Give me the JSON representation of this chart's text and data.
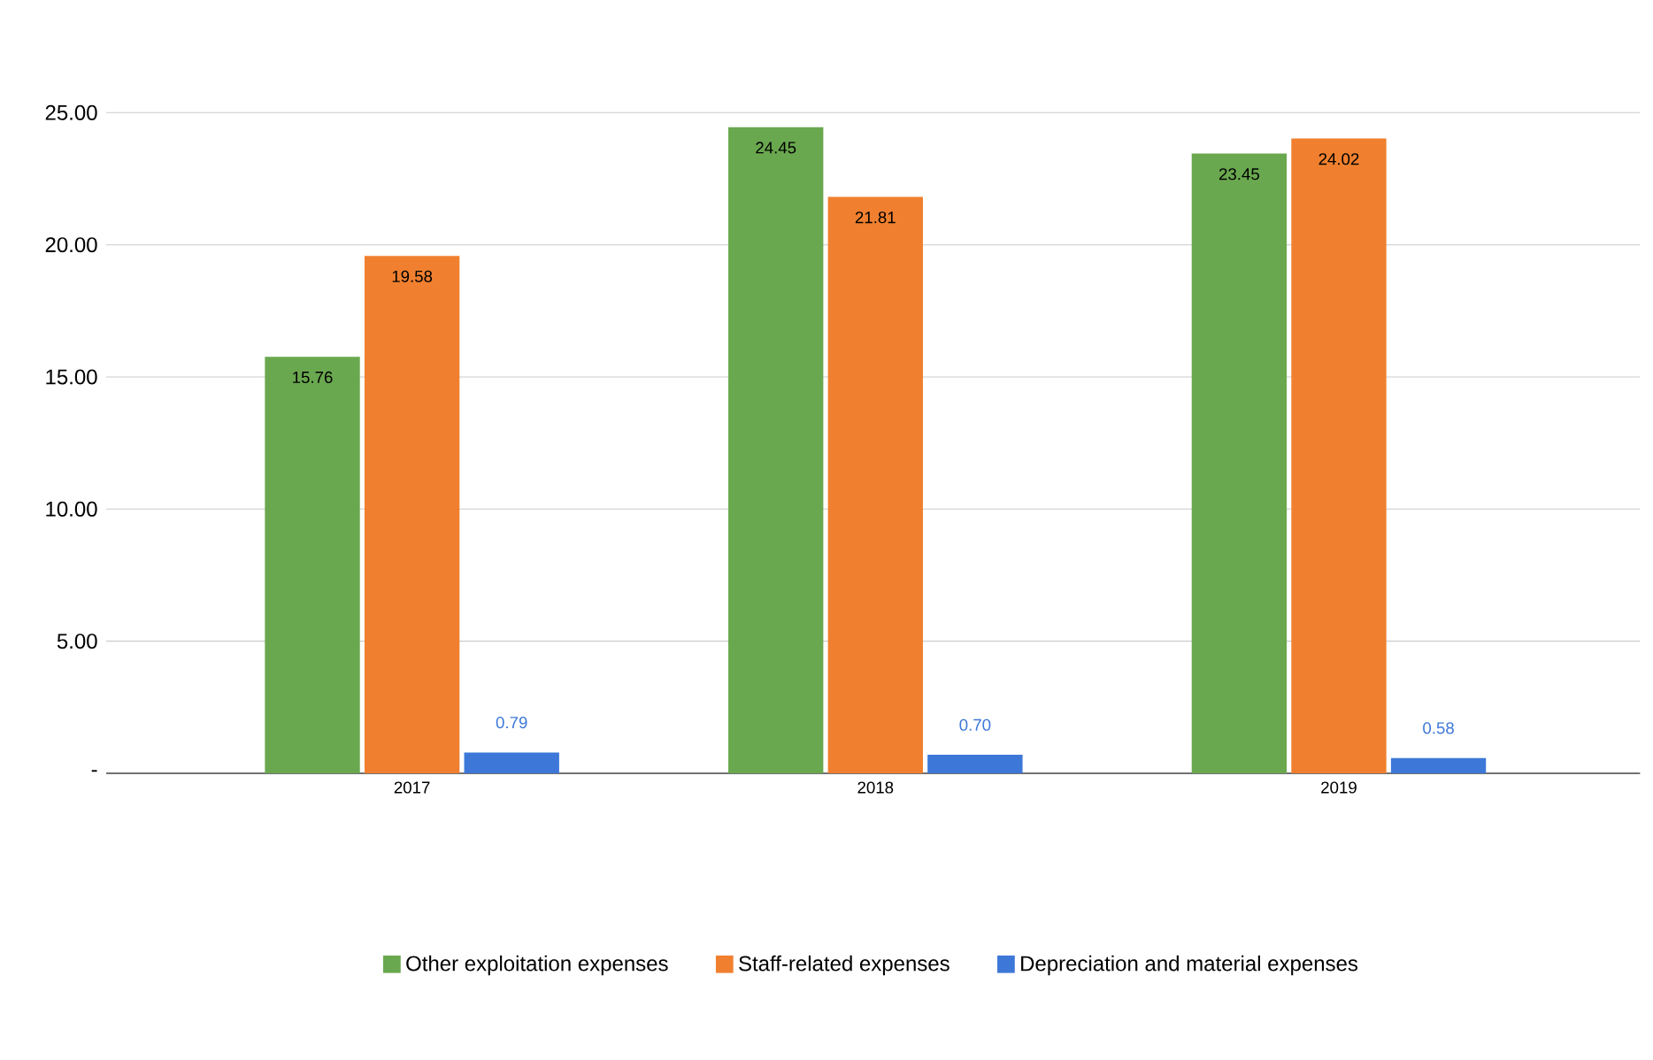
{
  "chart_data": {
    "type": "bar",
    "categories": [
      "2017",
      "2018",
      "2019"
    ],
    "series": [
      {
        "name": "Other exploitation expenses",
        "color": "#6aa84f",
        "values": [
          15.76,
          24.45,
          23.45
        ],
        "value_labels": [
          "15.76",
          "24.45",
          "23.45"
        ]
      },
      {
        "name": "Staff-related expenses",
        "color": "#f0802f",
        "values": [
          19.58,
          21.81,
          24.02
        ],
        "value_labels": [
          "19.58",
          "21.81",
          "24.02"
        ]
      },
      {
        "name": "Depreciation and material expenses",
        "color": "#3d78d8",
        "values": [
          0.79,
          0.7,
          0.58
        ],
        "value_labels": [
          "0.79",
          "0.70",
          "0.58"
        ]
      }
    ],
    "ylim": [
      0,
      25
    ],
    "yticks": [
      {
        "value": 0,
        "label": "-"
      },
      {
        "value": 5,
        "label": "5.00"
      },
      {
        "value": 10,
        "label": "10.00"
      },
      {
        "value": 15,
        "label": "15.00"
      },
      {
        "value": 20,
        "label": "20.00"
      },
      {
        "value": 25,
        "label": "25.00"
      }
    ],
    "grid": "y",
    "legend": "bottom"
  }
}
